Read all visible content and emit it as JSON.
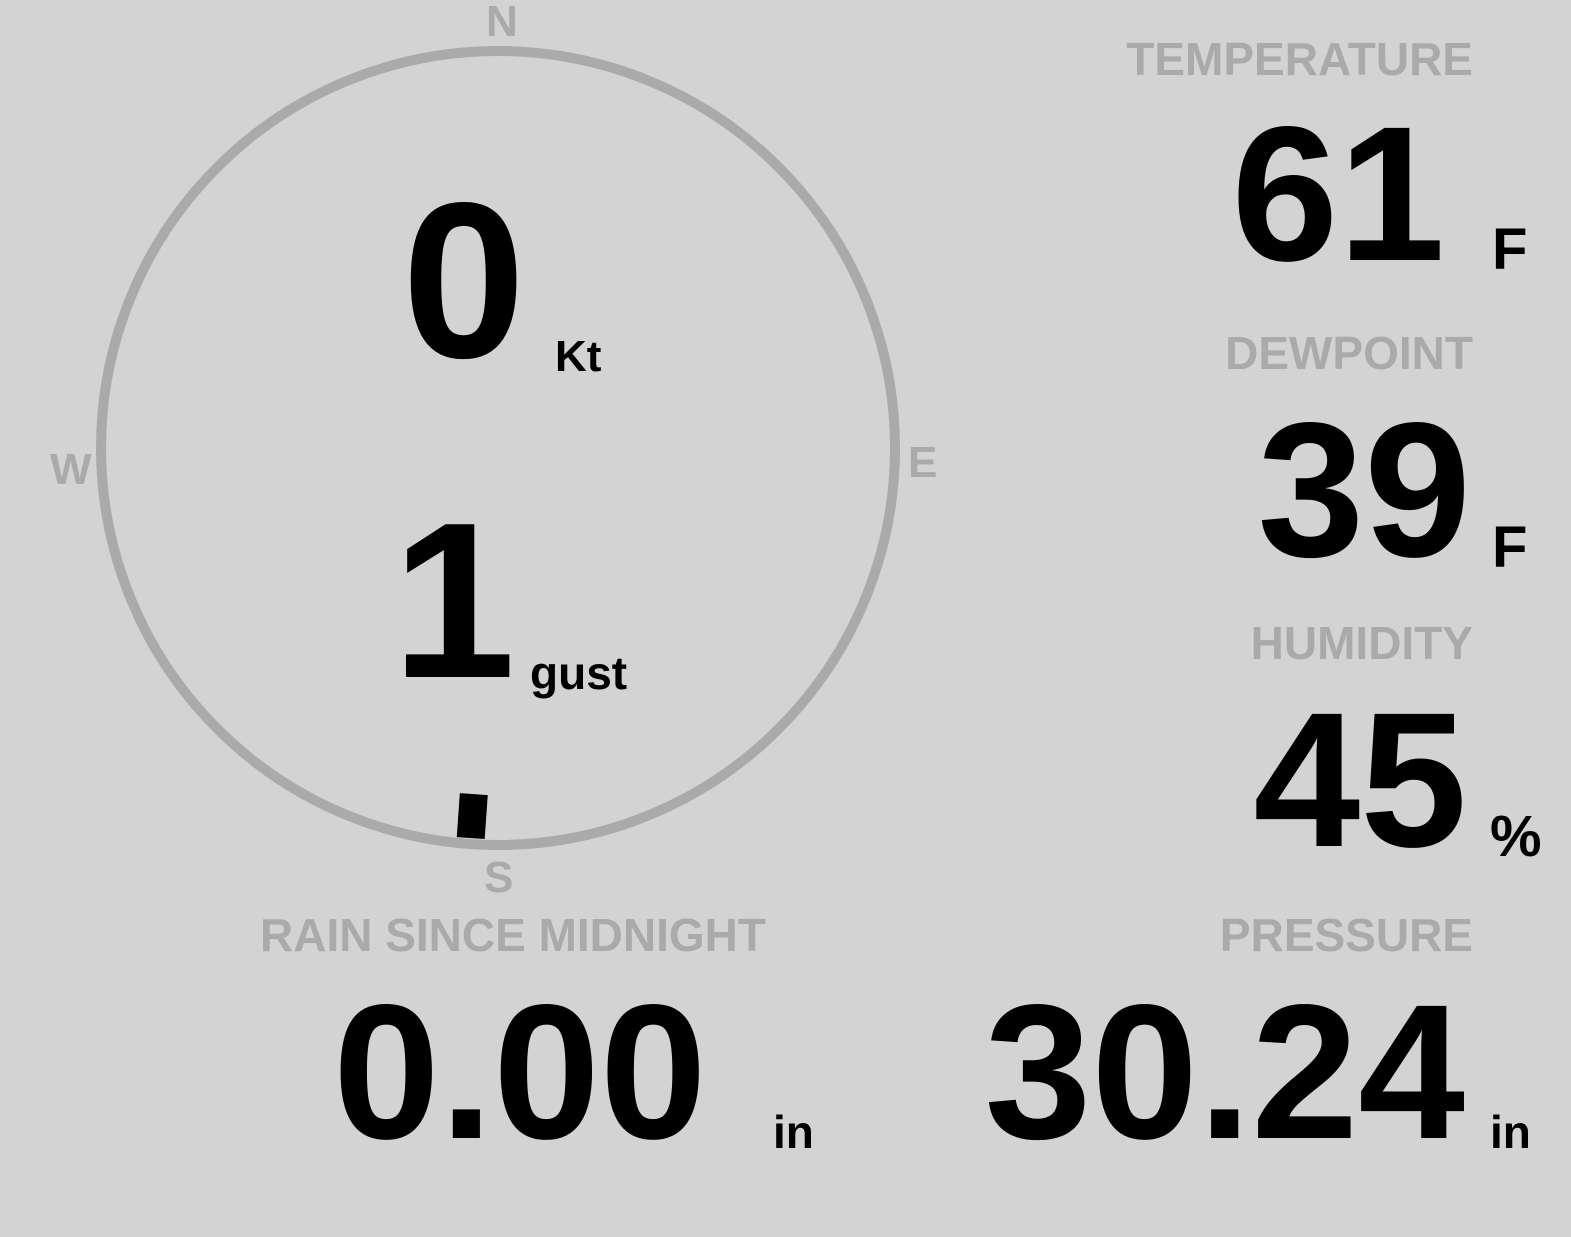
{
  "colors": {
    "background": "#d3d3d3",
    "label": "#aaaaaa",
    "value": "#000000",
    "dial": "#aaaaaa"
  },
  "wind": {
    "compass": {
      "n": "N",
      "e": "E",
      "s": "S",
      "w": "W"
    },
    "speed": "0",
    "speed_unit": "Kt",
    "gust": "1",
    "gust_unit": "gust",
    "direction_degrees": 184
  },
  "temperature": {
    "label": "TEMPERATURE",
    "value": "61",
    "unit": "F"
  },
  "dewpoint": {
    "label": "DEWPOINT",
    "value": "39",
    "unit": "F"
  },
  "humidity": {
    "label": "HUMIDITY",
    "value": "45",
    "unit": "%"
  },
  "pressure": {
    "label": "PRESSURE",
    "value": "30.24",
    "unit": "in"
  },
  "rain": {
    "label": "RAIN SINCE MIDNIGHT",
    "value": "0.00",
    "unit": "in"
  }
}
